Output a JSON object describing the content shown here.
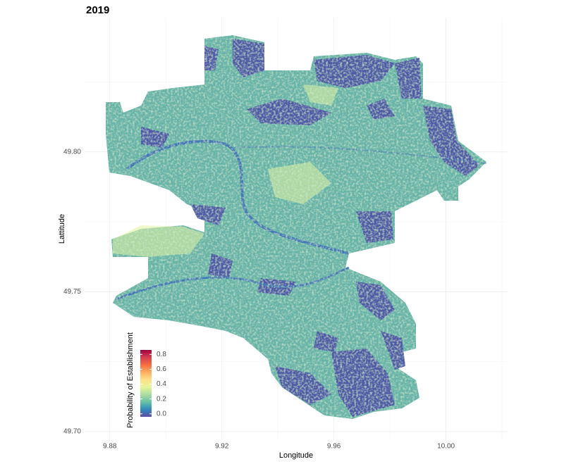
{
  "chart_data": {
    "type": "raster",
    "title": "2019",
    "x_label": "Longitude",
    "y_label": "Lattitude",
    "xlim": [
      9.871,
      10.022
    ],
    "ylim": [
      49.697,
      49.848
    ],
    "xticks": [
      {
        "value": 9.88,
        "label": "9.88"
      },
      {
        "value": 9.92,
        "label": "9.92"
      },
      {
        "value": 9.96,
        "label": "9.96"
      },
      {
        "value": 10.0,
        "label": "10.00"
      }
    ],
    "yticks": [
      {
        "value": 49.7,
        "label": "49.70"
      },
      {
        "value": 49.75,
        "label": "49.75"
      },
      {
        "value": 49.8,
        "label": "49.80"
      }
    ],
    "grid": true,
    "legend": {
      "title": "Probability of Establishment",
      "position": "bottom-left",
      "lim": [
        -0.04,
        0.86
      ],
      "ticks": [
        {
          "value": 0,
          "label": "0.0"
        },
        {
          "value": 0.2,
          "label": "0.2"
        },
        {
          "value": 0.4,
          "label": "0.4"
        },
        {
          "value": 0.6,
          "label": "0.6"
        },
        {
          "value": 0.8,
          "label": "0.8"
        }
      ],
      "colors": [
        "#5e4fa2",
        "#3288bd",
        "#66c2a5",
        "#abdda4",
        "#e6f598",
        "#fee08b",
        "#fdae61",
        "#f46d43",
        "#d53e4f",
        "#9e0142"
      ]
    }
  }
}
